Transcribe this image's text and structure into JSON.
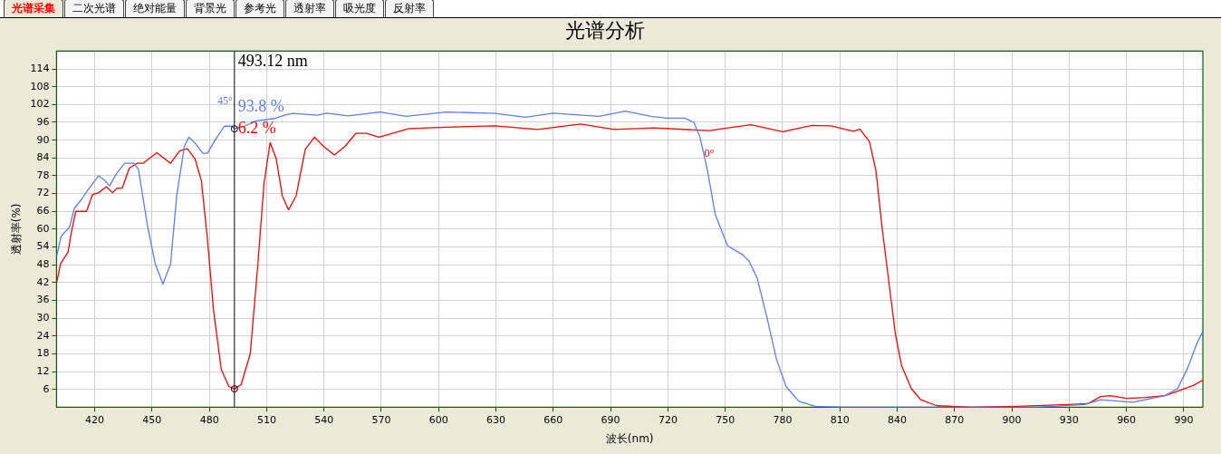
{
  "chart_data": {
    "type": "line",
    "title": "光谱分析",
    "xlabel": "波长(nm)",
    "ylabel": "透射率(%)",
    "xlim": [
      400,
      1000
    ],
    "xticks": [
      420,
      450,
      480,
      510,
      540,
      570,
      600,
      630,
      660,
      690,
      720,
      750,
      780,
      810,
      840,
      870,
      900,
      930,
      960,
      990
    ],
    "ylim": [
      0,
      120
    ],
    "yticks": [
      6,
      12,
      18,
      24,
      30,
      36,
      42,
      48,
      54,
      60,
      66,
      72,
      78,
      84,
      90,
      96,
      102,
      108,
      114
    ],
    "grid": true,
    "legend": false,
    "marker": "none",
    "line_style": "solid",
    "series": [
      {
        "name": "45°",
        "color": "#5a7df5",
        "x": [
          400.1,
          402.4,
          406.9,
          409.3,
          413.3,
          416.5,
          422.1,
          425.3,
          427.7,
          431.7,
          435.7,
          440.5,
          442.9,
          447.7,
          451.7,
          455.7,
          459.7,
          462.9,
          466.9,
          469.3,
          472.5,
          476.6,
          479,
          483,
          487.8,
          491.8,
          493.1,
          498.2,
          504.6,
          514.2,
          520.6,
          523.8,
          536.6,
          541.4,
          552.6,
          569.4,
          583,
          603.9,
          629.5,
          645.5,
          660,
          684,
          697.6,
          711.2,
          719.2,
          728.8,
          733.6,
          736.8,
          740.8,
          744.8,
          751.2,
          759.3,
          762.5,
          766.7,
          771.8,
          776.8,
          781.9,
          788.6,
          797,
          812.1,
          912.9,
          938.1,
          946.5,
          963.3,
          980.1,
          986.8,
          991.8,
          996.9,
          1000
        ],
        "values": [
          50.9,
          57.6,
          60.8,
          67,
          70.2,
          73.3,
          78,
          76.4,
          74.6,
          79,
          82.2,
          82.2,
          80.1,
          60.8,
          48.3,
          41.5,
          48.3,
          71.2,
          87.9,
          91,
          89,
          85.6,
          85.6,
          90,
          94.7,
          94.7,
          93.8,
          94.7,
          96.5,
          97.3,
          98.6,
          99,
          98.4,
          99.1,
          98.2,
          99.5,
          98,
          99.5,
          99,
          97.7,
          99.1,
          98,
          99.8,
          98,
          97.4,
          97.4,
          96,
          91,
          79.5,
          64.9,
          54.4,
          51.3,
          49.2,
          43.5,
          30.4,
          16.2,
          6.9,
          2,
          0.3,
          0,
          0,
          0.9,
          2.5,
          1.7,
          3.9,
          6.3,
          12.9,
          21.6,
          25.5
        ]
      },
      {
        "name": "0°",
        "color": "#ff0000",
        "x": [
          400.1,
          402.1,
          406.1,
          407.7,
          410.1,
          415.7,
          418.9,
          422.1,
          426.1,
          429.3,
          431.7,
          434.4,
          438.1,
          442.1,
          445.3,
          452.5,
          459.7,
          464.5,
          468.5,
          472.5,
          475.8,
          479,
          482.2,
          486.2,
          490.2,
          493.12,
          496.6,
          501.4,
          505.4,
          508.6,
          511.8,
          515,
          518.2,
          521.4,
          525.4,
          530.2,
          535,
          539.8,
          545.4,
          551,
          556.7,
          562.3,
          568.7,
          584.6,
          600.7,
          629.5,
          651.9,
          674.4,
          692,
          712.8,
          741.6,
          763.4,
          780.2,
          795.3,
          805.4,
          817.1,
          820.5,
          825.5,
          828.9,
          832.2,
          835.6,
          839,
          842.3,
          847.4,
          852.4,
          860.8,
          879.3,
          902.8,
          929.7,
          939.8,
          946.5,
          951.5,
          960,
          970,
          980.1,
          988.5,
          995.2,
          1000
        ],
        "values": [
          42,
          48.3,
          52.4,
          58.7,
          66,
          66,
          71.7,
          72.3,
          74.3,
          72.3,
          73.8,
          73.8,
          80.6,
          82.2,
          82.2,
          85.8,
          82.2,
          86.4,
          87.1,
          83.7,
          76.4,
          56.6,
          32.6,
          12.8,
          7,
          6.2,
          7.6,
          18,
          48.3,
          75.4,
          89.2,
          83.7,
          71.2,
          66.5,
          71.2,
          86.9,
          91,
          87.9,
          85,
          87.9,
          92.3,
          92.3,
          91,
          93.9,
          94.3,
          94.8,
          93.6,
          95.4,
          93.6,
          94.1,
          93.2,
          95.2,
          92.8,
          95,
          94.8,
          93,
          93.7,
          89.5,
          79.6,
          60,
          42.4,
          24.9,
          14,
          6.3,
          2.5,
          0.5,
          0,
          0.3,
          0.9,
          1.2,
          3.6,
          3.9,
          3,
          3.3,
          3.9,
          5.8,
          7.4,
          9.1
        ]
      }
    ],
    "ref_lines": [
      {
        "axis": "x",
        "value": 493.12,
        "label": "493.12 nm",
        "color": "#000000"
      }
    ],
    "annotations": [
      "光谱采集",
      "二次光谱",
      "绝对能量",
      "背景光",
      "参考光",
      "透射率",
      "吸光度",
      "反射率",
      "93.8 %",
      "6.2 %"
    ]
  }
}
